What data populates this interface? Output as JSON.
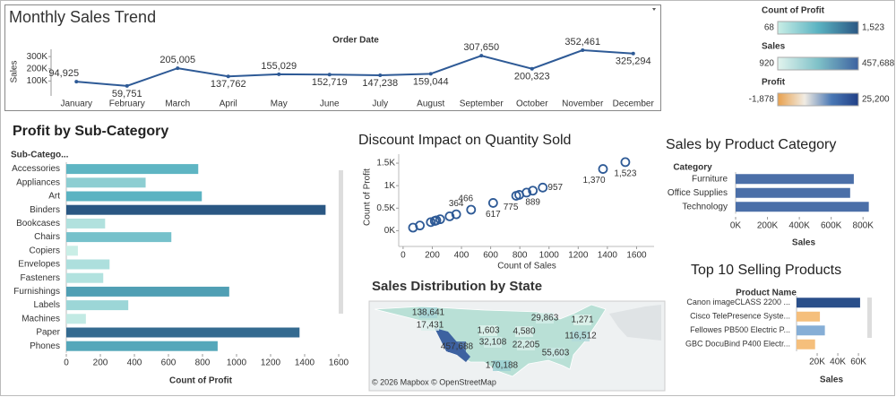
{
  "legends": [
    {
      "title": "Count of Profit",
      "range": [
        68,
        {
          "value": 1523,
          "label": "1,523"
        }
      ],
      "colors": [
        "#c9eee6",
        "#5bb3c2",
        "#2a5783"
      ]
    },
    {
      "title": "Sales",
      "range": [
        920,
        {
          "value": 457688,
          "label": "457,688"
        }
      ],
      "colors": [
        "#e2f4ee",
        "#7fc1c8",
        "#3d62a0"
      ]
    },
    {
      "title": "Profit",
      "range": [
        {
          "value": -1878,
          "label": "-1,878"
        },
        {
          "value": 25200,
          "label": "25,200"
        }
      ],
      "colors": [
        "#e8a04c",
        "#f1ece3",
        "#4a78b5",
        "#203f86"
      ]
    }
  ],
  "chart_data": [
    {
      "type": "line",
      "title": "Monthly Sales Trend",
      "x_label": "Order Date",
      "y_label": "Sales",
      "color": "#2e5a96",
      "categories": [
        "January",
        "February",
        "March",
        "April",
        "May",
        "June",
        "July",
        "August",
        "September",
        "October",
        "November",
        "December"
      ],
      "values": [
        94925,
        59751,
        205005,
        137762,
        155029,
        152719,
        147238,
        159044,
        307650,
        200323,
        352461,
        325294
      ],
      "value_labels": [
        "94,925",
        "59,751",
        "205,005",
        "137,762",
        "155,029",
        "152,719",
        "147,238",
        "159,044",
        "307,650",
        "200,323",
        "352,461",
        "325,294"
      ],
      "ylim": [
        0,
        360000
      ],
      "yticks": [
        {
          "value": 100000,
          "label": "100K"
        },
        {
          "value": 200000,
          "label": "200K"
        },
        {
          "value": 300000,
          "label": "300K"
        }
      ]
    },
    {
      "type": "hbar",
      "title": "Profit by Sub-Category",
      "category_label": "Sub-Catego...",
      "x_label": "Count of Profit",
      "color_legend": 0,
      "categories": [
        "Accessories",
        "Appliances",
        "Art",
        "Binders",
        "Bookcases",
        "Chairs",
        "Copiers",
        "Envelopes",
        "Fasteners",
        "Furnishings",
        "Labels",
        "Machines",
        "Paper",
        "Phones"
      ],
      "values": [
        775,
        466,
        796,
        1523,
        228,
        617,
        68,
        254,
        217,
        957,
        364,
        115,
        1370,
        889
      ],
      "xlim": [
        0,
        1600
      ],
      "xticks": [
        0,
        200,
        400,
        600,
        800,
        1000,
        1200,
        1400,
        1600
      ]
    },
    {
      "type": "scatter",
      "title": "Discount Impact on Quantity Sold",
      "x_label": "Count of Sales",
      "y_label": "Count of Profit",
      "color": "#2e5a96",
      "x": [
        68,
        115,
        190,
        217,
        228,
        254,
        319,
        364,
        466,
        617,
        775,
        796,
        846,
        889,
        957,
        1370,
        1523
      ],
      "values": [
        68,
        115,
        190,
        217,
        228,
        254,
        319,
        364,
        466,
        617,
        775,
        796,
        846,
        889,
        957,
        1370,
        1523
      ],
      "value_labels": [
        null,
        null,
        null,
        null,
        null,
        null,
        null,
        "364",
        "466",
        "617",
        "775",
        null,
        null,
        "889",
        "957",
        "1,370",
        "1,523"
      ],
      "xlim": [
        -30,
        1720
      ],
      "ylim": [
        -350,
        1700
      ],
      "xticks": [
        0,
        200,
        400,
        600,
        800,
        1000,
        1200,
        1400,
        1600
      ],
      "yticks": [
        {
          "value": 0,
          "label": "0K"
        },
        {
          "value": 500,
          "label": "0.5K"
        },
        {
          "value": 1000,
          "label": "1K"
        },
        {
          "value": 1500,
          "label": "1.5K"
        }
      ]
    },
    {
      "type": "map",
      "title": "Sales Distribution by State",
      "attribution": "© 2026 Mapbox  © OpenStreetMap",
      "color_legend": 1,
      "values": [
        138641,
        17431,
        457688,
        1603,
        32108,
        4580,
        29863,
        1271,
        116512,
        22205,
        55603,
        170188
      ],
      "value_labels": [
        "138,641",
        "17,431",
        "457,688",
        "1,603",
        "32,108",
        "4,580",
        "29,863",
        "1,271",
        "116,512",
        "22,205",
        "55,603",
        "170,188"
      ]
    },
    {
      "type": "hbar",
      "title": "Sales by Product Category",
      "category_label": "Category",
      "x_label": "Sales",
      "color": "#4b6fa8",
      "categories": [
        "Furniture",
        "Office Supplies",
        "Technology"
      ],
      "values": [
        742000,
        719047,
        836154
      ],
      "xlim": [
        0,
        900000
      ],
      "xticks": [
        {
          "value": 0,
          "label": "0K"
        },
        {
          "value": 200000,
          "label": "200K"
        },
        {
          "value": 400000,
          "label": "400K"
        },
        {
          "value": 600000,
          "label": "600K"
        },
        {
          "value": 800000,
          "label": "800K"
        }
      ]
    },
    {
      "type": "hbar",
      "title": "Top 10 Selling Products",
      "category_label": "Product Name",
      "x_label": "Sales",
      "colors": [
        "#2a4f8a",
        "#f5bf7c",
        "#86aed6",
        "#f5bf7c"
      ],
      "categories": [
        "Canon imageCLASS 2200 ...",
        "Cisco TelePresence Syste...",
        "Fellowes PB500 Electric P...",
        "GBC DocuBind P400 Electr..."
      ],
      "values": [
        61600,
        22638,
        27453,
        17965
      ],
      "xlim": [
        0,
        66000
      ],
      "xticks": [
        {
          "value": 20000,
          "label": "20K"
        },
        {
          "value": 40000,
          "label": "40K"
        },
        {
          "value": 60000,
          "label": "60K"
        }
      ]
    }
  ]
}
